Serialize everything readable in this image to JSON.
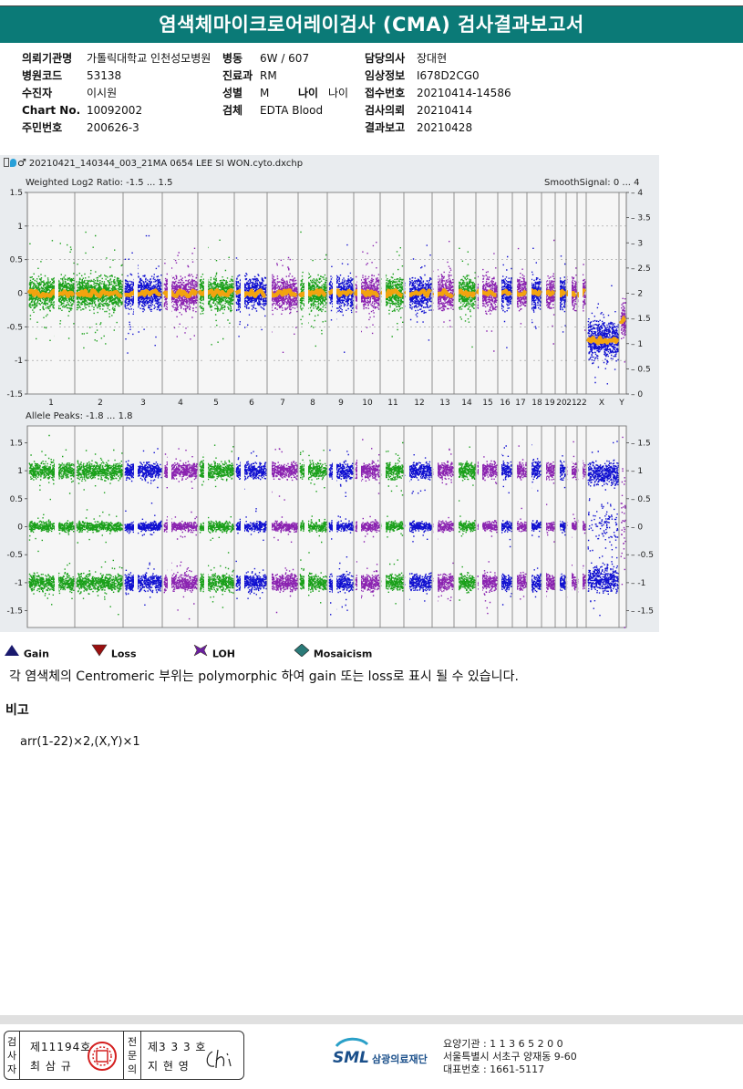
{
  "title": "염색체마이크로어레이검사 (CMA) 검사결과보고서",
  "info": {
    "col1": [
      {
        "k": "의뢰기관명",
        "v": "가톨릭대학교 인천성모병원"
      },
      {
        "k": "병원코드",
        "v": "53138"
      },
      {
        "k": "수진자",
        "v": "이시원"
      },
      {
        "k": "Chart No.",
        "v": "10092002"
      },
      {
        "k": "주민번호",
        "v": "200626-3"
      }
    ],
    "col2": [
      {
        "k": "병동",
        "v": "6W / 607"
      },
      {
        "k": "진료과",
        "v": "RM"
      },
      {
        "k": "성별",
        "v": "M"
      },
      {
        "k": "검체",
        "v": "EDTA Blood"
      }
    ],
    "age": {
      "k": "나이",
      "v": "나이"
    },
    "col3": [
      {
        "k": "담당의사",
        "v": "장대현"
      },
      {
        "k": "임상정보",
        "v": "I678D2CG0"
      },
      {
        "k": "접수번호",
        "v": "20210414-14586"
      },
      {
        "k": "검사의뢰",
        "v": "20210414"
      },
      {
        "k": "결과보고",
        "v": "20210428"
      }
    ]
  },
  "figure": {
    "file_title": "20210421_140344_003_21MA 0654 LEE SI WON.cyto.dxchp",
    "top_label": "Weighted Log2 Ratio: -1.5 ... 1.5",
    "smooth_label": "SmoothSignal: 0 ... 4",
    "bottom_label": "Allele Peaks: -1.8 ... 1.8",
    "chromosomes": [
      "1",
      "2",
      "3",
      "4",
      "5",
      "6",
      "7",
      "8",
      "9",
      "10",
      "11",
      "12",
      "13",
      "14",
      "15",
      "16",
      "17",
      "18",
      "19",
      "20",
      "21",
      "22",
      "X",
      "Y"
    ],
    "top_left_ticks": [
      "1.5",
      "1",
      "0.5",
      "0",
      "-0.5",
      "-1",
      "-1.5"
    ],
    "top_right_ticks": [
      "4",
      "3.5",
      "3",
      "2.5",
      "2",
      "1.5",
      "1",
      "0.5",
      "0"
    ],
    "bottom_left_ticks": [
      "1.5",
      "1",
      "0.5",
      "0",
      "-0.5",
      "-1",
      "-1.5"
    ],
    "bottom_right_ticks": [
      "1.5",
      "1",
      "0.5",
      "0",
      "-0.5",
      "-1",
      "-1.5"
    ],
    "colors": {
      "green": "#1aa01a",
      "blue": "#1010d0",
      "purple": "#8a22b0",
      "orange": "#f2a30f"
    }
  },
  "legend": [
    {
      "label": "Gain",
      "icon": "triangle-up-icon",
      "color": "#1a1a6e"
    },
    {
      "label": "Loss",
      "icon": "triangle-down-icon",
      "color": "#9a1010"
    },
    {
      "label": "LOH",
      "icon": "loh-icon",
      "color": "#6a1fa0"
    },
    {
      "label": "Mosaicism",
      "icon": "diamond-icon",
      "color": "#2a7a78"
    }
  ],
  "note": "각 염색체의 Centromeric 부위는 polymorphic 하여 gain 또는 loss로 표시 될 수 있습니다.",
  "remarks": {
    "heading": "비고",
    "value": "arr(1-22)×2,(X,Y)×1"
  },
  "signature": {
    "examiner_label": [
      "검",
      "사",
      "자"
    ],
    "examiner_no": "제11194호",
    "examiner_name": "최 삼 규",
    "specialist_label": [
      "전",
      "문",
      "의"
    ],
    "specialist_no": "제3 3 3 호",
    "specialist_name": "지 현 영"
  },
  "org": {
    "logo": "SML",
    "name": "삼광의료재단",
    "code": "요양기관 : 1 1 3 6 5 2 0 0",
    "address": "서울특별시 서초구 양재동 9-60",
    "phone": "대표번호 : 1661-5117"
  }
}
